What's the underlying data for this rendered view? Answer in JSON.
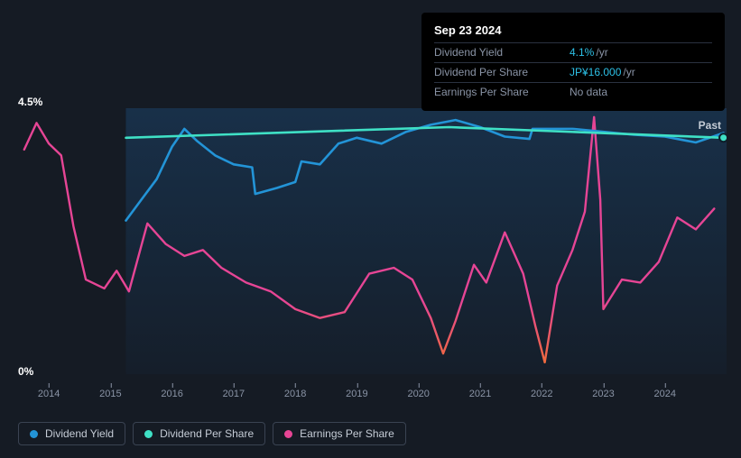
{
  "tooltip": {
    "date": "Sep 23 2024",
    "rows": [
      {
        "label": "Dividend Yield",
        "value": "4.1%",
        "unit": "/yr",
        "nodata": false
      },
      {
        "label": "Dividend Per Share",
        "value": "JP¥16.000",
        "unit": "/yr",
        "nodata": false
      },
      {
        "label": "Earnings Per Share",
        "value": "No data",
        "unit": "",
        "nodata": true
      }
    ]
  },
  "chart": {
    "past_label": "Past",
    "y_max_label": "4.5%",
    "y_min_label": "0%",
    "y_max": 4.5,
    "y_min": 0,
    "x_domain": [
      2013.5,
      2025.0
    ],
    "x_ticks": [
      2014,
      2015,
      2016,
      2017,
      2018,
      2019,
      2020,
      2021,
      2022,
      2023,
      2024
    ],
    "data_region_start": 2015.25,
    "background_color": "#151b24",
    "region_gradient_top": "#183049",
    "region_gradient_bottom": "#151e2a",
    "colors": {
      "dividend_yield": "#2394d7",
      "dividend_per_share": "#3fe0c5",
      "earnings_per_share": "#e64595",
      "earnings_low": "#f06a3e",
      "axis_text": "#8a94a6"
    },
    "series": {
      "dividend_yield": [
        [
          2015.25,
          2.6
        ],
        [
          2015.5,
          2.95
        ],
        [
          2015.75,
          3.3
        ],
        [
          2016.0,
          3.85
        ],
        [
          2016.2,
          4.15
        ],
        [
          2016.4,
          3.95
        ],
        [
          2016.7,
          3.7
        ],
        [
          2017.0,
          3.55
        ],
        [
          2017.3,
          3.5
        ],
        [
          2017.35,
          3.05
        ],
        [
          2017.7,
          3.15
        ],
        [
          2018.0,
          3.25
        ],
        [
          2018.1,
          3.6
        ],
        [
          2018.4,
          3.55
        ],
        [
          2018.7,
          3.9
        ],
        [
          2019.0,
          4.0
        ],
        [
          2019.4,
          3.9
        ],
        [
          2019.8,
          4.1
        ],
        [
          2020.2,
          4.22
        ],
        [
          2020.6,
          4.3
        ],
        [
          2021.0,
          4.18
        ],
        [
          2021.4,
          4.02
        ],
        [
          2021.8,
          3.98
        ],
        [
          2021.85,
          4.15
        ],
        [
          2022.5,
          4.15
        ],
        [
          2023.0,
          4.1
        ],
        [
          2023.5,
          4.05
        ],
        [
          2024.0,
          4.02
        ],
        [
          2024.5,
          3.92
        ],
        [
          2024.95,
          4.08
        ]
      ],
      "dividend_per_share": [
        [
          2015.25,
          4.0
        ],
        [
          2020.5,
          4.18
        ],
        [
          2024.95,
          4.0
        ]
      ],
      "earnings_per_share": [
        [
          2013.6,
          3.8
        ],
        [
          2013.8,
          4.25
        ],
        [
          2014.0,
          3.9
        ],
        [
          2014.2,
          3.7
        ],
        [
          2014.4,
          2.5
        ],
        [
          2014.6,
          1.6
        ],
        [
          2014.9,
          1.45
        ],
        [
          2015.1,
          1.75
        ],
        [
          2015.3,
          1.4
        ],
        [
          2015.6,
          2.55
        ],
        [
          2015.9,
          2.2
        ],
        [
          2016.2,
          2.0
        ],
        [
          2016.5,
          2.1
        ],
        [
          2016.8,
          1.8
        ],
        [
          2017.2,
          1.55
        ],
        [
          2017.6,
          1.4
        ],
        [
          2018.0,
          1.1
        ],
        [
          2018.4,
          0.95
        ],
        [
          2018.8,
          1.05
        ],
        [
          2019.2,
          1.7
        ],
        [
          2019.6,
          1.8
        ],
        [
          2019.9,
          1.6
        ],
        [
          2020.2,
          0.95
        ],
        [
          2020.4,
          0.35
        ],
        [
          2020.6,
          0.9
        ],
        [
          2020.9,
          1.85
        ],
        [
          2021.1,
          1.55
        ],
        [
          2021.4,
          2.4
        ],
        [
          2021.7,
          1.7
        ],
        [
          2021.9,
          0.8
        ],
        [
          2022.05,
          0.2
        ],
        [
          2022.25,
          1.5
        ],
        [
          2022.5,
          2.1
        ],
        [
          2022.7,
          2.75
        ],
        [
          2022.85,
          4.35
        ],
        [
          2022.95,
          2.95
        ],
        [
          2023.0,
          1.1
        ],
        [
          2023.3,
          1.6
        ],
        [
          2023.6,
          1.55
        ],
        [
          2023.9,
          1.9
        ],
        [
          2024.2,
          2.65
        ],
        [
          2024.5,
          2.45
        ],
        [
          2024.8,
          2.8
        ]
      ]
    }
  },
  "legend": [
    {
      "label": "Dividend Yield",
      "color": "#2394d7"
    },
    {
      "label": "Dividend Per Share",
      "color": "#3fe0c5"
    },
    {
      "label": "Earnings Per Share",
      "color": "#e64595"
    }
  ]
}
